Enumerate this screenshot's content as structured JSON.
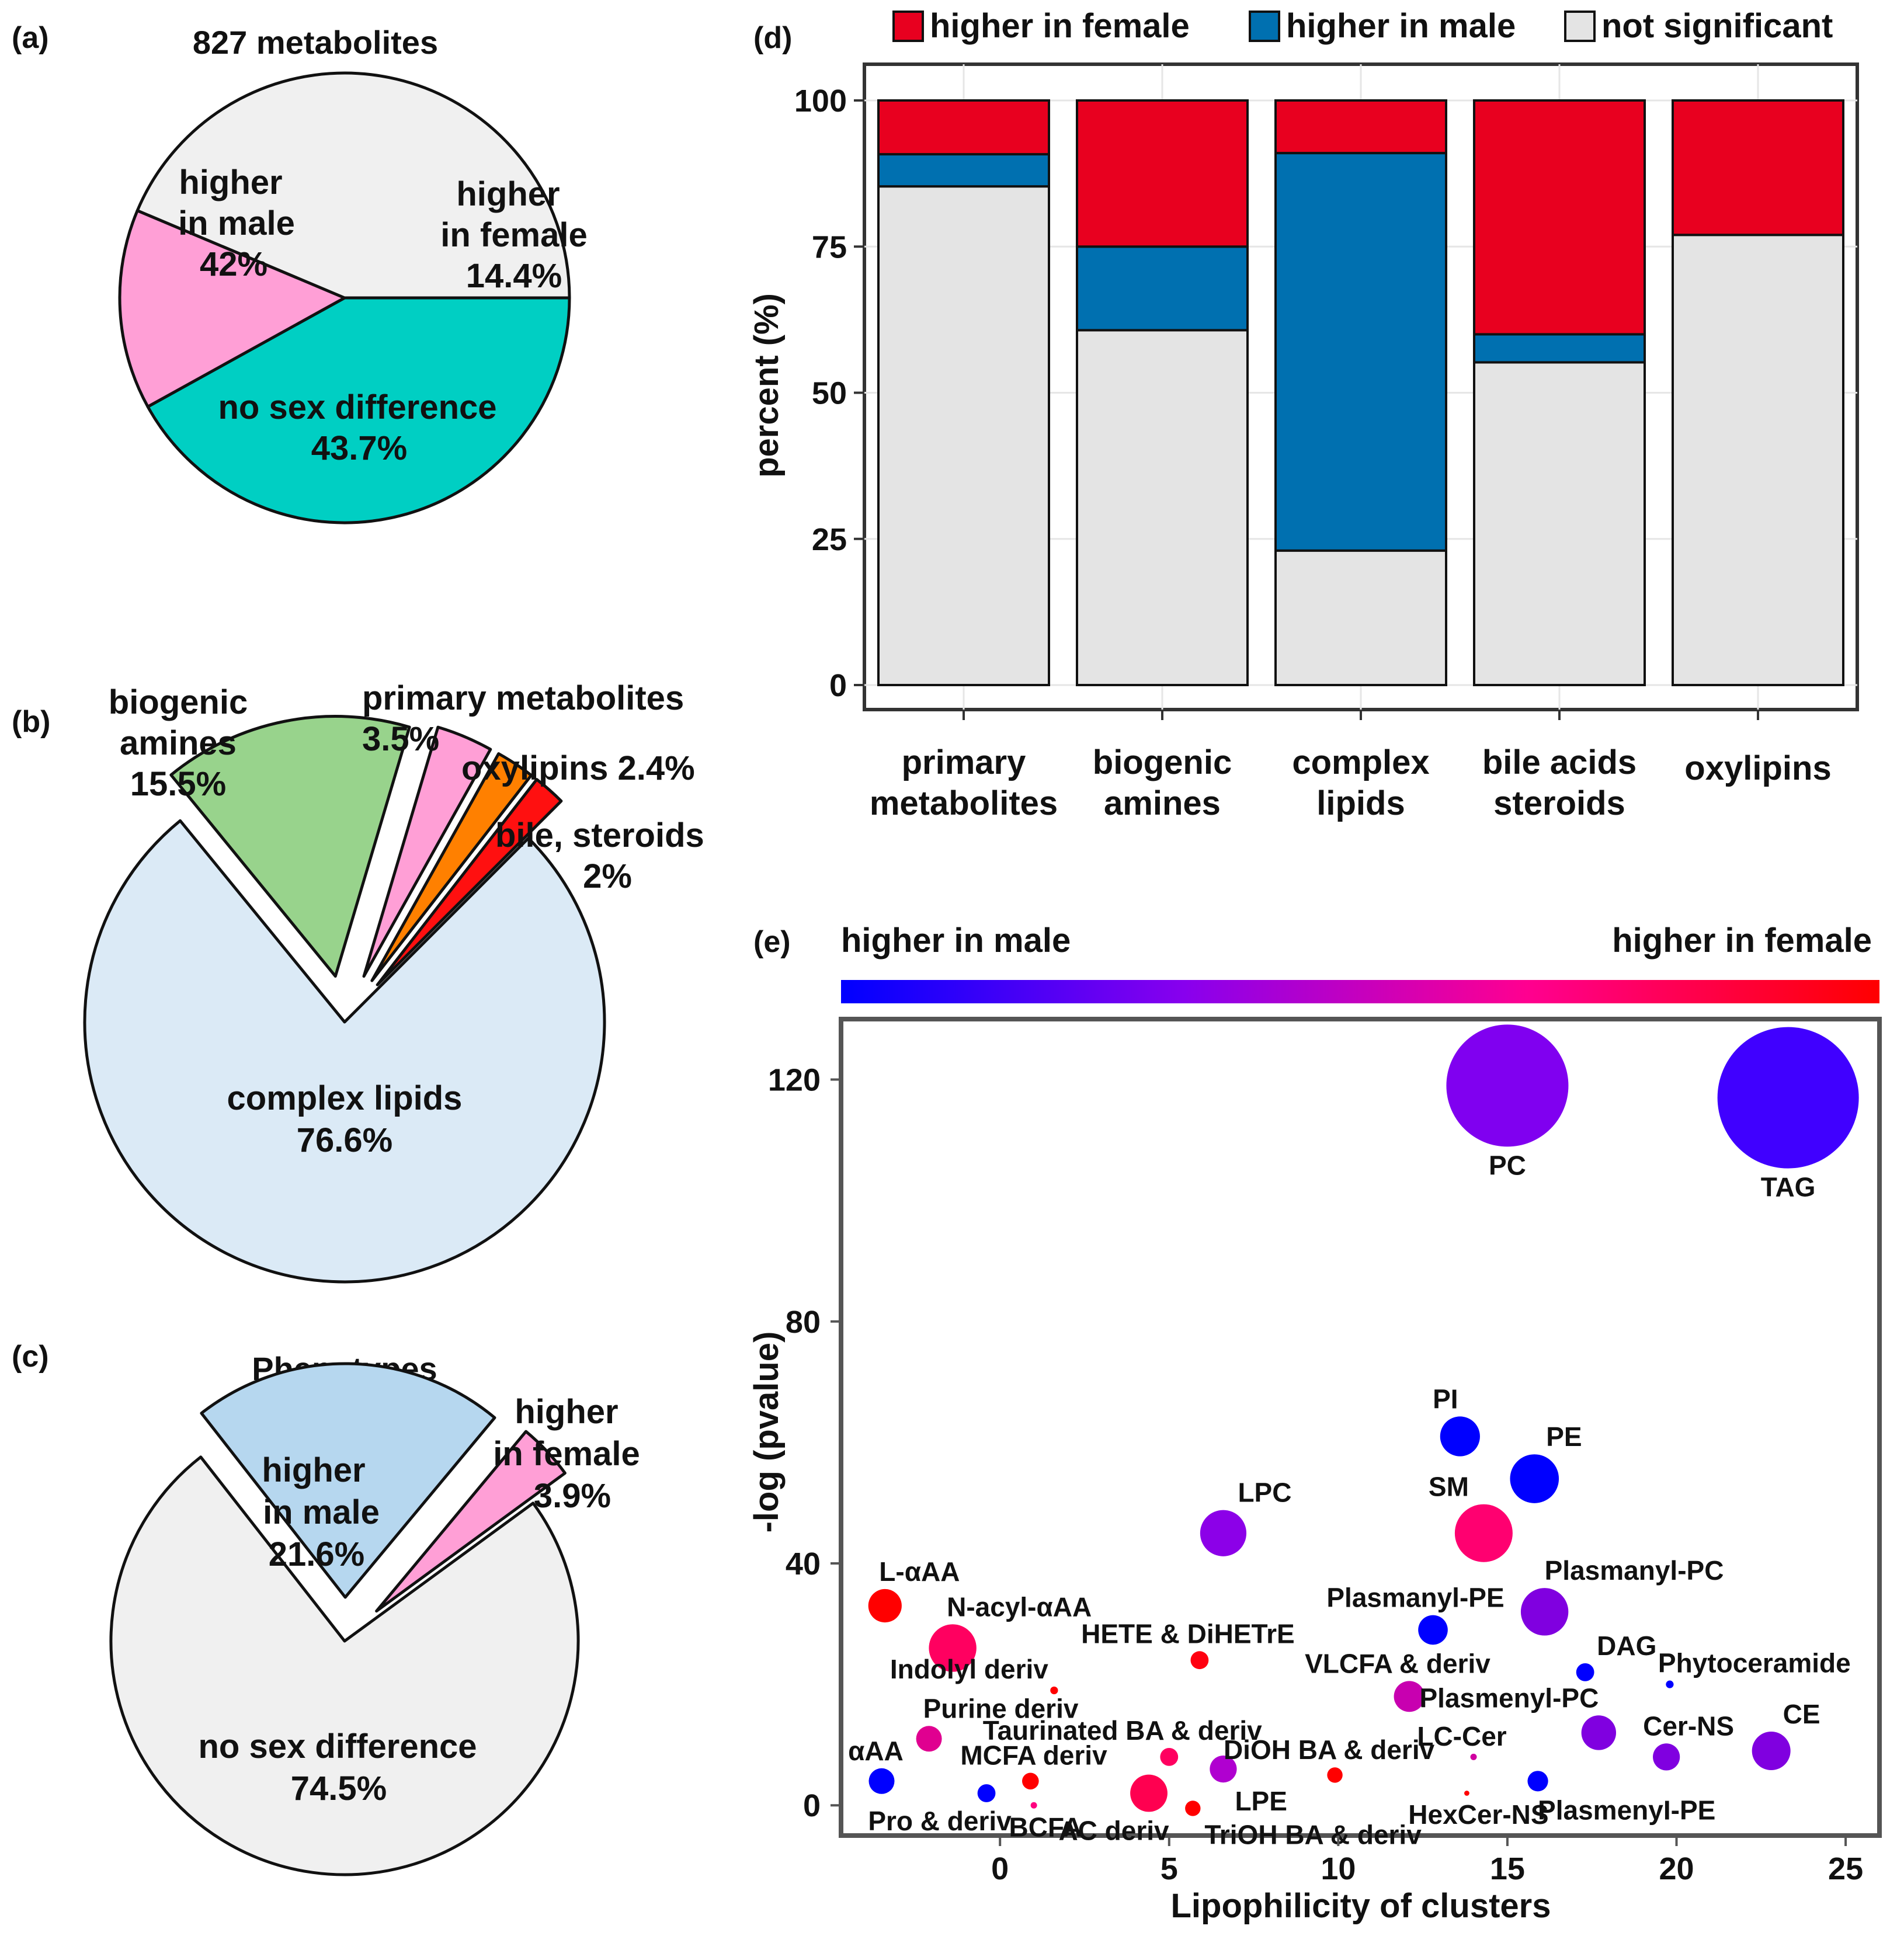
{
  "colors": {
    "male_teal": "#00cfc3",
    "female_pink": "#ff9fd6",
    "nodiff_gray": "#f0f0f0",
    "green": "#98d38c",
    "orange": "#ff8000",
    "red_small": "#ff1010",
    "lightblue": "#dbeaf6",
    "pheno_male": "#b6d7ef",
    "female_red": "#e8001f",
    "male_blue": "#0070b0",
    "ns_gray": "#e4e4e4"
  },
  "chart_data": [
    {
      "panel": "(a)",
      "type": "pie",
      "title": "827 metabolites",
      "slices": [
        {
          "name": "higher in male",
          "value": 42.0,
          "lines": [
            "higher",
            "in male",
            "42%"
          ],
          "color": "#00cfc3"
        },
        {
          "name": "higher in female",
          "value": 14.4,
          "lines": [
            "higher",
            "in female",
            "14.4%"
          ],
          "color": "#ff9fd6"
        },
        {
          "name": "no sex difference",
          "value": 43.7,
          "lines": [
            "no sex difference",
            "43.7%"
          ],
          "color": "#f0f0f0"
        }
      ]
    },
    {
      "panel": "(b)",
      "type": "pie",
      "title": "",
      "slices": [
        {
          "name": "complex lipids",
          "value": 76.6,
          "lines": [
            "complex lipids",
            "76.6%"
          ],
          "color": "#dbeaf6"
        },
        {
          "name": "biogenic amines",
          "value": 15.5,
          "lines": [
            "biogenic",
            "amines",
            "15.5%"
          ],
          "color": "#98d38c"
        },
        {
          "name": "primary metabolites",
          "value": 3.5,
          "lines": [
            "primary metabolites",
            "3.5%"
          ],
          "color": "#ff9fd6"
        },
        {
          "name": "oxylipins",
          "value": 2.4,
          "lines": [
            "oxylipins  2.4%"
          ],
          "color": "#ff8000"
        },
        {
          "name": "bile, steroids",
          "value": 2.0,
          "lines": [
            "bile, steroids",
            "2%"
          ],
          "color": "#ff1010"
        }
      ]
    },
    {
      "panel": "(c)",
      "type": "pie",
      "title": "Phenotypes",
      "slices": [
        {
          "name": "higher in male",
          "value": 21.6,
          "lines": [
            "higher",
            "in male",
            "21.6%"
          ],
          "color": "#b6d7ef"
        },
        {
          "name": "higher in female",
          "value": 3.9,
          "lines": [
            "higher",
            "in female",
            "3.9%"
          ],
          "color": "#ff9fd6"
        },
        {
          "name": "no sex difference",
          "value": 74.5,
          "lines": [
            "no sex difference",
            "74.5%"
          ],
          "color": "#f0f0f0"
        }
      ]
    },
    {
      "panel": "(d)",
      "type": "bar",
      "stacked": true,
      "ylabel": "percent (%)",
      "xlabel": "",
      "ylim": [
        0,
        100
      ],
      "yticks": [
        0,
        25,
        50,
        75,
        100
      ],
      "grid": true,
      "legend_position": "top",
      "categories": [
        [
          "primary",
          "metabolites"
        ],
        [
          "biogenic",
          "amines"
        ],
        [
          "complex",
          "lipids"
        ],
        [
          "bile acids",
          "steroids"
        ],
        [
          "oxylipins"
        ]
      ],
      "series": [
        {
          "name": "not significant",
          "color": "#e4e4e4",
          "values": [
            85.3,
            60.7,
            23.0,
            55.2,
            77.0
          ]
        },
        {
          "name": "higher in male",
          "color": "#0070b0",
          "values": [
            5.5,
            14.3,
            68.0,
            4.8,
            0
          ]
        },
        {
          "name": "higher in female",
          "color": "#e8001f",
          "values": [
            9.2,
            25.0,
            9.0,
            40.0,
            23.0
          ]
        }
      ],
      "legend": [
        {
          "name": "higher in female",
          "color": "#e8001f"
        },
        {
          "name": "higher in male",
          "color": "#0070b0"
        },
        {
          "name": "not significant",
          "color": "#e4e4e4"
        }
      ]
    },
    {
      "panel": "(e)",
      "type": "scatter",
      "bubble": true,
      "xlabel": "Lipophilicity  of clusters",
      "ylabel": "-log (pvalue)",
      "xlim": [
        -4.7,
        26
      ],
      "ylim": [
        -5,
        130
      ],
      "xticks": [
        0,
        5,
        10,
        15,
        20,
        25
      ],
      "yticks": [
        0,
        40,
        80,
        120
      ],
      "grid": false,
      "color_scale": {
        "low_label": "higher in male",
        "high_label": "higher in female",
        "colors": [
          "#0000ff",
          "#8800ee",
          "#ff0090",
          "#ff0000"
        ]
      },
      "points": [
        {
          "label": "PC",
          "x": 15.0,
          "y": 119,
          "size": 9.5,
          "color": "#8000f0"
        },
        {
          "label": "TAG",
          "x": 23.3,
          "y": 117,
          "size": 11,
          "color": "#4000ff"
        },
        {
          "label": "PI",
          "x": 13.6,
          "y": 61,
          "size": 3.1,
          "color": "#0000ff"
        },
        {
          "label": "PE",
          "x": 15.8,
          "y": 54,
          "size": 3.8,
          "color": "#0000ff"
        },
        {
          "label": "LPC",
          "x": 6.6,
          "y": 45,
          "size": 3.6,
          "color": "#8c00e8"
        },
        {
          "label": "SM",
          "x": 14.3,
          "y": 45,
          "size": 4.5,
          "color": "#ff0070"
        },
        {
          "label": "L-αAA",
          "x": -3.4,
          "y": 33,
          "size": 2.6,
          "color": "#ff0000"
        },
        {
          "label": "Plasmanyl-PC",
          "x": 16.1,
          "y": 32,
          "size": 3.7,
          "color": "#8000e0"
        },
        {
          "label": "Plasmanyl-PE",
          "x": 12.8,
          "y": 29,
          "size": 2.3,
          "color": "#0000ff"
        },
        {
          "label": "N-acyl-αAA",
          "x": -1.4,
          "y": 26,
          "size": 3.7,
          "color": "#ff0060"
        },
        {
          "label": "HETE & DiHETrE",
          "x": 5.9,
          "y": 24,
          "size": 1.4,
          "color": "#ff0010"
        },
        {
          "label": "DAG",
          "x": 17.3,
          "y": 22,
          "size": 1.4,
          "color": "#0000ff"
        },
        {
          "label": "Phytoceramide",
          "x": 19.8,
          "y": 20,
          "size": 0.6,
          "color": "#0000ff"
        },
        {
          "label": "Indolyl deriv",
          "x": 1.6,
          "y": 19,
          "size": 0.6,
          "color": "#ff0000"
        },
        {
          "label": "VLCFA & deriv",
          "x": 12.1,
          "y": 18,
          "size": 2.4,
          "color": "#c800b0"
        },
        {
          "label": "Purine deriv",
          "x": -2.1,
          "y": 11,
          "size": 2.0,
          "color": "#e00090"
        },
        {
          "label": "Plasmenyl-PC",
          "x": 17.7,
          "y": 12,
          "size": 2.7,
          "color": "#8000e0"
        },
        {
          "label": "LC-Cer",
          "x": 14.0,
          "y": 8,
          "size": 0.5,
          "color": "#d000a0"
        },
        {
          "label": "Cer-NS",
          "x": 19.7,
          "y": 8,
          "size": 2.1,
          "color": "#8000e0"
        },
        {
          "label": "CE",
          "x": 22.8,
          "y": 9,
          "size": 3.0,
          "color": "#8000e0"
        },
        {
          "label": "Taurinated BA & deriv",
          "x": 5.0,
          "y": 8,
          "size": 1.4,
          "color": "#ff0060"
        },
        {
          "label": "LPE",
          "x": 6.6,
          "y": 6,
          "size": 2.1,
          "color": "#b000d0"
        },
        {
          "label": "DiOH BA & deriv",
          "x": 9.9,
          "y": 5,
          "size": 1.2,
          "color": "#ff0000"
        },
        {
          "label": "αAA",
          "x": -3.5,
          "y": 4,
          "size": 2.0,
          "color": "#0000ff"
        },
        {
          "label": "MCFA deriv",
          "x": 0.9,
          "y": 4,
          "size": 1.3,
          "color": "#ff0000"
        },
        {
          "label": "Pro & deriv",
          "x": -0.4,
          "y": 2,
          "size": 1.4,
          "color": "#0000ff"
        },
        {
          "label": "PlasmenyI-PE",
          "x": 15.9,
          "y": 4,
          "size": 1.6,
          "color": "#0000ff"
        },
        {
          "label": "HexCer-NS",
          "x": 13.8,
          "y": 2,
          "size": 0.4,
          "color": "#ff0000"
        },
        {
          "label": "AC deriv",
          "x": 4.4,
          "y": 2,
          "size": 2.9,
          "color": "#ff0050"
        },
        {
          "label": "TriOH BA & deriv",
          "x": 5.7,
          "y": -0.5,
          "size": 1.2,
          "color": "#ff0000"
        },
        {
          "label": "BCFA",
          "x": 1.0,
          "y": 0,
          "size": 0.5,
          "color": "#ff0080"
        }
      ]
    }
  ]
}
